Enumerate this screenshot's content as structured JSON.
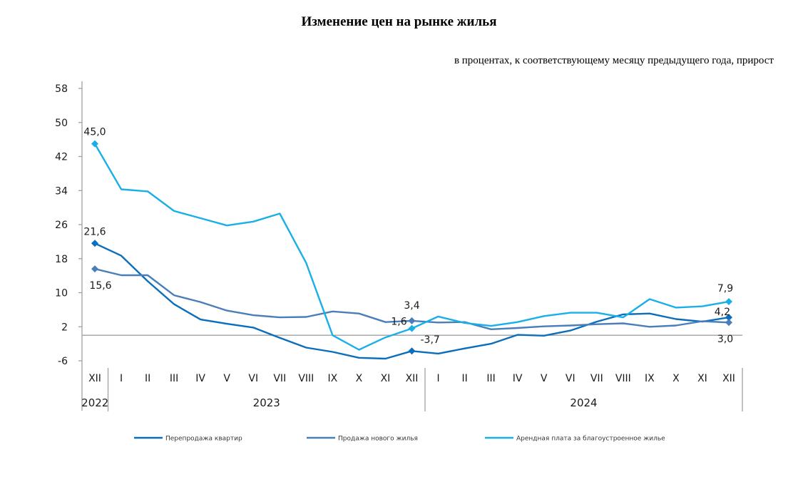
{
  "chart_data": {
    "type": "line",
    "title": "Изменение цен на рынке жилья",
    "subtitle": "в процентах, к соответствующему месяцу предыдущего года, прирост",
    "xlabel": "",
    "ylabel": "",
    "ylim": [
      -6,
      58
    ],
    "y_ticks": [
      "58",
      "50",
      "42",
      "34",
      "26",
      "18",
      "10",
      "2",
      "-6"
    ],
    "y_tick_values": [
      58,
      50,
      42,
      34,
      26,
      18,
      10,
      2,
      -6
    ],
    "grid": false,
    "legend_position": "bottom",
    "categories": [
      "XII",
      "I",
      "II",
      "III",
      "IV",
      "V",
      "VI",
      "VII",
      "VIII",
      "IX",
      "X",
      "XI",
      "XII",
      "I",
      "II",
      "III",
      "IV",
      "V",
      "VI",
      "VII",
      "VIII",
      "IX",
      "X",
      "XI",
      "XII"
    ],
    "year_groups": [
      {
        "label": "2022",
        "count": 1
      },
      {
        "label": "2023",
        "count": 12
      },
      {
        "label": "2024",
        "count": 12
      }
    ],
    "series": [
      {
        "name": "Перепродажа квартир",
        "color": "#0A6EBD",
        "values": [
          21.6,
          18.7,
          12.7,
          7.3,
          3.7,
          2.7,
          1.8,
          -0.6,
          -2.9,
          -3.9,
          -5.3,
          -5.5,
          -3.7,
          -4.3,
          -3.1,
          -2.0,
          0.1,
          -0.1,
          1.1,
          3.2,
          4.9,
          5.1,
          3.8,
          3.2,
          4.2
        ],
        "labels": [
          {
            "index": 0,
            "text": "21,6",
            "pos": "above"
          },
          {
            "index": 12,
            "text": "-3,7",
            "pos": "above-right"
          },
          {
            "index": 24,
            "text": "4,2",
            "pos": "above-left"
          }
        ]
      },
      {
        "name": "Продажа нового жилья",
        "color": "#4A7EBB",
        "values": [
          15.6,
          14.1,
          14.1,
          9.4,
          7.8,
          5.8,
          4.7,
          4.2,
          4.3,
          5.6,
          5.1,
          3.1,
          3.4,
          3.0,
          3.1,
          1.4,
          1.7,
          2.1,
          2.3,
          2.6,
          2.8,
          2.0,
          2.3,
          3.3,
          3.0
        ],
        "labels": [
          {
            "index": 0,
            "text": "15,6",
            "pos": "below"
          },
          {
            "index": 12,
            "text": "3,4",
            "pos": "above"
          },
          {
            "index": 24,
            "text": "3,0",
            "pos": "below"
          }
        ]
      },
      {
        "name": "Арендная плата за благоустроенное жилье",
        "color": "#1AAFE6",
        "values": [
          45.0,
          34.3,
          33.8,
          29.2,
          27.5,
          25.8,
          26.7,
          28.6,
          17.0,
          0.0,
          -3.4,
          -0.5,
          1.6,
          4.4,
          2.9,
          2.2,
          3.1,
          4.5,
          5.3,
          5.3,
          4.2,
          8.5,
          6.5,
          6.8,
          7.9
        ],
        "labels": [
          {
            "index": 0,
            "text": "45,0",
            "pos": "above"
          },
          {
            "index": 12,
            "text": "1,6",
            "pos": "above-left"
          },
          {
            "index": 24,
            "text": "7,9",
            "pos": "above"
          }
        ]
      }
    ]
  },
  "colors": {
    "axis": "#A0A0A0",
    "text": "#1A1A1A"
  }
}
